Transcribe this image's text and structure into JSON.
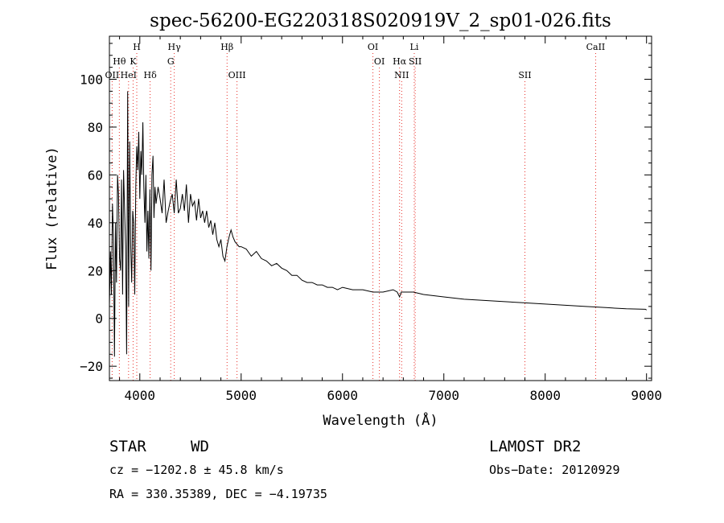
{
  "chart_data": {
    "type": "line",
    "title": "spec-56200-EG220318S020919V_2_sp01-026.fits",
    "xlabel": "Wavelength (Å)",
    "ylabel": "Flux (relative)",
    "xlim": [
      3700,
      9050
    ],
    "ylim": [
      -26,
      118
    ],
    "x_ticks": [
      4000,
      5000,
      6000,
      7000,
      8000,
      9000
    ],
    "y_ticks": [
      -20,
      0,
      20,
      40,
      60,
      80,
      100
    ],
    "grid": false,
    "line_color": "#000000",
    "marker_color": "#e8302a",
    "series": [
      {
        "x": [
          3700,
          3710,
          3720,
          3730,
          3740,
          3750,
          3760,
          3770,
          3780,
          3790,
          3800,
          3810,
          3820,
          3830,
          3840,
          3850,
          3860,
          3870,
          3880,
          3890,
          3900,
          3910,
          3920,
          3930,
          3940,
          3950,
          3960,
          3970,
          3980,
          3990,
          4000,
          4010,
          4020,
          4030,
          4040,
          4050,
          4060,
          4070,
          4080,
          4090,
          4100,
          4110,
          4120,
          4130,
          4140,
          4150,
          4160,
          4180,
          4200,
          4220,
          4240,
          4260,
          4280,
          4300,
          4320,
          4340,
          4360,
          4380,
          4400,
          4420,
          4440,
          4460,
          4480,
          4500,
          4520,
          4540,
          4560,
          4580,
          4600,
          4620,
          4640,
          4660,
          4680,
          4700,
          4720,
          4740,
          4760,
          4780,
          4800,
          4820,
          4840,
          4860,
          4880,
          4900,
          4920,
          4940,
          4960,
          4980,
          5000,
          5050,
          5100,
          5150,
          5200,
          5250,
          5300,
          5350,
          5400,
          5450,
          5500,
          5550,
          5600,
          5650,
          5700,
          5750,
          5800,
          5850,
          5900,
          5950,
          6000,
          6100,
          6200,
          6300,
          6400,
          6500,
          6540,
          6563,
          6580,
          6620,
          6700,
          6800,
          7000,
          7200,
          7400,
          7600,
          7800,
          8000,
          8200,
          8400,
          8600,
          8800,
          8990,
          9000
        ],
        "y": [
          5,
          28,
          10,
          48,
          35,
          -16,
          40,
          15,
          60,
          52,
          25,
          20,
          58,
          10,
          62,
          45,
          30,
          -15,
          95,
          5,
          74,
          30,
          15,
          45,
          40,
          10,
          55,
          72,
          62,
          78,
          50,
          70,
          60,
          82,
          55,
          40,
          60,
          28,
          45,
          25,
          54,
          20,
          60,
          68,
          42,
          55,
          48,
          55,
          50,
          44,
          58,
          40,
          45,
          49,
          52,
          44,
          58,
          44,
          46,
          52,
          45,
          56,
          40,
          52,
          47,
          49,
          41,
          50,
          42,
          45,
          40,
          45,
          38,
          41,
          35,
          40,
          33,
          30,
          33,
          26,
          24,
          30,
          34,
          37,
          34,
          32,
          31,
          30,
          30,
          29,
          26,
          28,
          25,
          24,
          22,
          23,
          21,
          20,
          18,
          18,
          16,
          15,
          15,
          14,
          14,
          13,
          13,
          12,
          13,
          12,
          12,
          11,
          11,
          12,
          11,
          9,
          11,
          11,
          11,
          10,
          9,
          8,
          7.5,
          7,
          6.5,
          6,
          5.5,
          5,
          4.5,
          4,
          3.8,
          3.5
        ]
      }
    ],
    "line_markers": [
      {
        "label": "Hγ",
        "x": 4340,
        "row": 0
      },
      {
        "label": "H",
        "x": 3970,
        "row": 0
      },
      {
        "label": "Hθ",
        "x": 3798,
        "row": 1
      },
      {
        "label": "K",
        "x": 3934,
        "row": 1
      },
      {
        "label": "G",
        "x": 4305,
        "row": 1
      },
      {
        "label": "OII",
        "x": 3727,
        "row": 2
      },
      {
        "label": "HeI",
        "x": 3889,
        "row": 2
      },
      {
        "label": "Hδ",
        "x": 4102,
        "row": 2
      },
      {
        "label": "Hβ",
        "x": 4861,
        "row": 0
      },
      {
        "label": "OIII",
        "x": 4959,
        "row": 2
      },
      {
        "label": "OI",
        "x": 6300,
        "row": 0
      },
      {
        "label": "OI",
        "x": 6364,
        "row": 1
      },
      {
        "label": "Li",
        "x": 6708,
        "row": 0
      },
      {
        "label": "Hα",
        "x": 6563,
        "row": 1
      },
      {
        "label": "SII",
        "x": 6717,
        "row": 1
      },
      {
        "label": "NII",
        "x": 6584,
        "row": 2
      },
      {
        "label": "SII",
        "x": 7800,
        "row": 2
      },
      {
        "label": "CaII",
        "x": 8498,
        "row": 0
      }
    ]
  },
  "info": {
    "class_label": "STAR",
    "subclass": "WD",
    "cz": "cz = −1202.8 ± 45.8 km/s",
    "radec": "RA = 330.35389, DEC =  −4.19735",
    "survey": "LAMOST DR2",
    "obs_date": "Obs−Date: 20120929"
  }
}
